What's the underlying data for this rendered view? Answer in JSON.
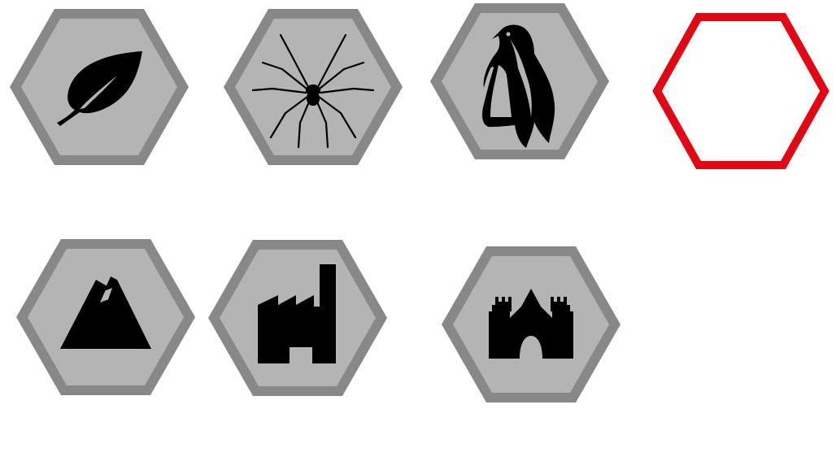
{
  "palette": {
    "tile_border": "#888888",
    "tile_fill": "#b4b4b4",
    "icon_ink": "#000000",
    "empty_slot_outline": "#e30613",
    "background": "#ffffff"
  },
  "board": {
    "tiles": [
      {
        "name": "hex-tile-leaf",
        "icon": "leaf-icon"
      },
      {
        "name": "hex-tile-spider",
        "icon": "spider-icon"
      },
      {
        "name": "hex-tile-penguin",
        "icon": "penguin-icon"
      },
      {
        "name": "hex-slot-empty",
        "icon": "empty-hex-outline"
      },
      {
        "name": "hex-tile-mountain",
        "icon": "mountain-lightning-icon"
      },
      {
        "name": "hex-tile-factory",
        "icon": "factory-icon"
      },
      {
        "name": "hex-tile-castle",
        "icon": "castle-icon"
      }
    ]
  }
}
